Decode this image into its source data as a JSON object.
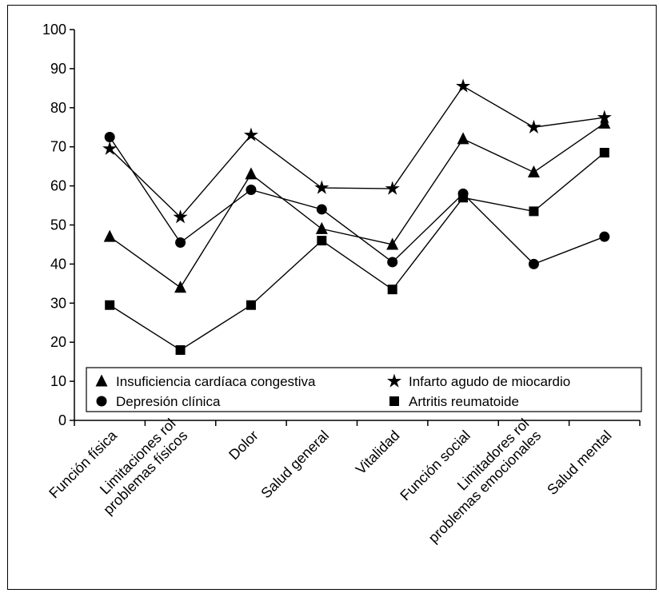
{
  "chart_data": {
    "type": "line",
    "categories": [
      [
        "Función física"
      ],
      [
        "Limitaciones rol",
        "problemas físicos"
      ],
      [
        "Dolor"
      ],
      [
        "Salud general"
      ],
      [
        "Vitalidad"
      ],
      [
        "Función social"
      ],
      [
        "Limitadores rol",
        "problemas emocionales"
      ],
      [
        "Salud mental"
      ]
    ],
    "ylim": [
      0,
      100
    ],
    "yticks": [
      0,
      10,
      20,
      30,
      40,
      50,
      60,
      70,
      80,
      90,
      100
    ],
    "grid": false,
    "legend_position": "bottom",
    "series": [
      {
        "name": "Insuficiencia cardíaca congestiva",
        "marker": "triangle",
        "values": [
          47,
          34,
          63,
          49,
          45,
          72,
          63.5,
          76
        ]
      },
      {
        "name": "Infarto agudo de miocardio",
        "marker": "star",
        "values": [
          69.5,
          52,
          73,
          59.5,
          59.3,
          85.5,
          75,
          77.5
        ]
      },
      {
        "name": "Depresión clínica",
        "marker": "circle",
        "values": [
          72.5,
          45.5,
          59,
          54,
          40.5,
          58,
          40,
          47
        ]
      },
      {
        "name": "Artritis reumatoide",
        "marker": "square",
        "values": [
          29.5,
          18,
          29.5,
          46,
          33.5,
          57,
          53.5,
          68.5
        ]
      }
    ]
  },
  "colors": {
    "line": "#000000",
    "marker": "#000000",
    "background": "#ffffff"
  }
}
